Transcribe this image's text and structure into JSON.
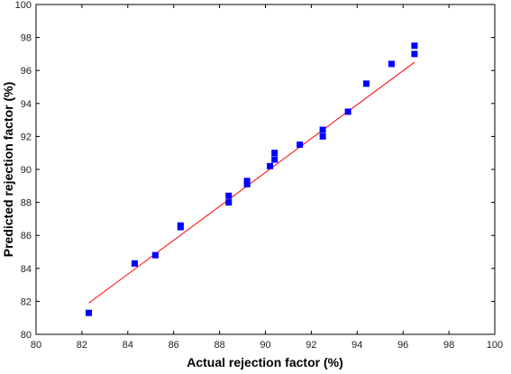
{
  "chart_data": {
    "type": "scatter",
    "title": "",
    "xlabel": "Actual rejection factor (%)",
    "ylabel": "Predicted rejection factor (%)",
    "xlim": [
      80,
      100
    ],
    "ylim": [
      80,
      100
    ],
    "xticks": [
      80,
      82,
      84,
      86,
      88,
      90,
      92,
      94,
      96,
      98,
      100
    ],
    "yticks": [
      80,
      82,
      84,
      86,
      88,
      90,
      92,
      94,
      96,
      98,
      100
    ],
    "grid": false,
    "legend": "none",
    "colors": {
      "points": "#0000ff",
      "fit_line": "#ff0000",
      "axes": "#000000"
    },
    "series": [
      {
        "x": [
          82.3,
          84.3,
          85.2,
          86.3,
          86.3,
          88.4,
          88.4,
          89.2,
          89.2,
          90.2,
          90.4,
          90.4,
          91.5,
          92.5,
          92.5,
          93.6,
          94.4,
          95.5,
          96.5,
          96.5
        ],
        "y": [
          81.3,
          84.3,
          84.8,
          86.6,
          86.5,
          88.4,
          88.0,
          89.3,
          89.1,
          90.2,
          91.0,
          90.6,
          91.5,
          92.4,
          92.0,
          93.5,
          95.2,
          96.4,
          97.5,
          97.0
        ]
      }
    ],
    "fit_line": {
      "x": [
        82.3,
        96.5
      ],
      "y": [
        81.9,
        96.5
      ]
    }
  }
}
